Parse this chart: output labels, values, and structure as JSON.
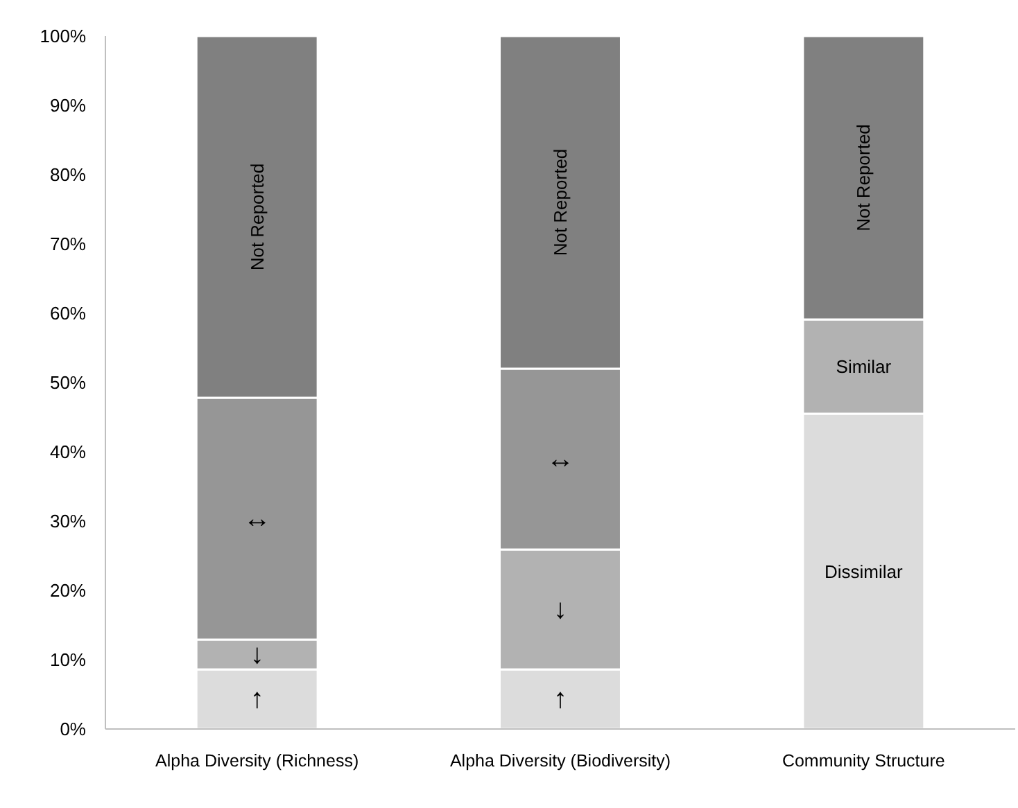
{
  "chart_data": {
    "type": "bar",
    "stacked": true,
    "categories": [
      "Alpha Diversity (Richness)",
      "Alpha Diversity (Biodiversity)",
      "Community Structure"
    ],
    "series": [
      {
        "name": "↑",
        "color": "#dcdcdc",
        "values": [
          8.6,
          8.6,
          null
        ]
      },
      {
        "name": "↓",
        "color": "#b2b2b2",
        "values": [
          4.3,
          17.3,
          null
        ]
      },
      {
        "name": "↔",
        "color": "#969696",
        "values": [
          34.9,
          26.1,
          null
        ]
      },
      {
        "name": "Dissimilar",
        "color": "#dcdcdc",
        "values": [
          null,
          null,
          45.5
        ]
      },
      {
        "name": "Similar",
        "color": "#b2b2b2",
        "values": [
          null,
          null,
          13.6
        ]
      },
      {
        "name": "Not Reported",
        "color": "#808080",
        "values": [
          52.2,
          48.0,
          40.9
        ]
      }
    ],
    "ylim": [
      0,
      100
    ],
    "yticks": [
      {
        "value": 0,
        "label": "0%"
      },
      {
        "value": 10,
        "label": "10%"
      },
      {
        "value": 20,
        "label": "20%"
      },
      {
        "value": 30,
        "label": "30%"
      },
      {
        "value": 40,
        "label": "40%"
      },
      {
        "value": 50,
        "label": "50%"
      },
      {
        "value": 60,
        "label": "60%"
      },
      {
        "value": 70,
        "label": "70%"
      },
      {
        "value": 80,
        "label": "80%"
      },
      {
        "value": 90,
        "label": "90%"
      },
      {
        "value": 100,
        "label": "100%"
      }
    ],
    "grid": false
  }
}
